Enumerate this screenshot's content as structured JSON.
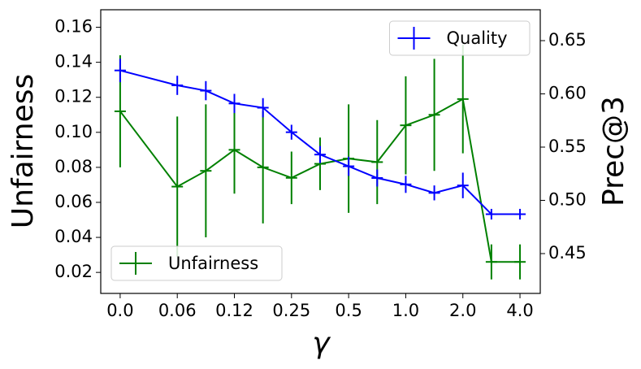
{
  "chart_data": {
    "type": "line",
    "xlabel": "γ",
    "ylabel": "Unfairness",
    "y2label": "Prec@3",
    "x": [
      0,
      2,
      3,
      4,
      5,
      6,
      7,
      8,
      9,
      10,
      11,
      12,
      13,
      14
    ],
    "xlim": [
      -0.68,
      14.71
    ],
    "xticks": [
      {
        "value": 0,
        "label": "0.0"
      },
      {
        "value": 2,
        "label": "0.06"
      },
      {
        "value": 4,
        "label": "0.12"
      },
      {
        "value": 6,
        "label": "0.25"
      },
      {
        "value": 8,
        "label": "0.5"
      },
      {
        "value": 10,
        "label": "1.0"
      },
      {
        "value": 12,
        "label": "2.0"
      },
      {
        "value": 14,
        "label": "4.0"
      }
    ],
    "ylim": [
      0.008,
      0.17
    ],
    "yticks": [
      0.02,
      0.04,
      0.06,
      0.08,
      {
        "value": 0.1,
        "label": "0.10"
      },
      0.12,
      0.14,
      0.16
    ],
    "y2lim": [
      0.4126,
      0.679
    ],
    "y2ticks": [
      0.45,
      {
        "value": 0.5,
        "label": "0.50"
      },
      0.55,
      {
        "value": 0.6,
        "label": "0.60"
      },
      0.65
    ],
    "series": [
      {
        "name": "Unfairness",
        "color": "#008000",
        "legend": "lower left",
        "values": [
          0.112,
          0.069,
          0.078,
          0.09,
          0.08,
          0.074,
          0.082,
          0.085,
          0.083,
          0.104,
          0.11,
          0.119,
          0.026,
          0.026
        ],
        "errors": [
          0.032,
          0.04,
          0.038,
          0.025,
          0.032,
          0.015,
          0.015,
          0.031,
          0.024,
          0.028,
          0.032,
          0.031,
          0.01,
          0.01
        ]
      },
      {
        "name": "Quality",
        "color": "#0000ff",
        "axis": "y2",
        "legend": "upper right",
        "values": [
          0.622,
          0.608,
          0.603,
          0.591,
          0.587,
          0.564,
          0.543,
          0.532,
          0.521,
          0.515,
          0.507,
          0.514,
          0.487,
          0.487
        ],
        "errors": [
          0.011,
          0.009,
          0.009,
          0.009,
          0.009,
          0.007,
          0.008,
          0.009,
          0.008,
          0.008,
          0.007,
          0.012,
          0.005,
          0.005
        ]
      }
    ]
  }
}
